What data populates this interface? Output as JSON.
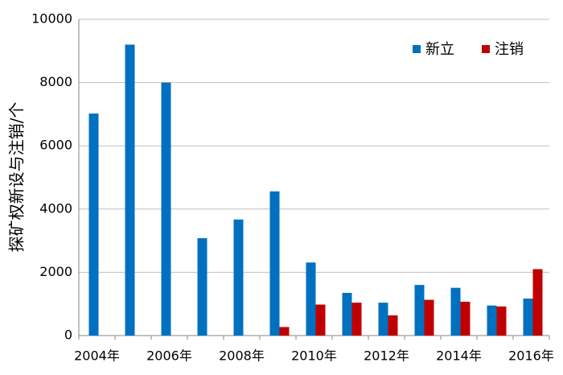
{
  "chart_data": {
    "type": "bar",
    "y_label": "探矿权新设与注销/个",
    "categories": [
      "2004年",
      null,
      "2006年",
      null,
      "2008年",
      null,
      "2010年",
      null,
      "2012年",
      null,
      "2014年",
      null,
      "2016年"
    ],
    "series": [
      {
        "name": "新立",
        "color": "#0070c0",
        "values": [
          7020,
          9200,
          8000,
          3080,
          3670,
          4560,
          2310,
          1350,
          1040,
          1600,
          1510,
          950,
          1170
        ]
      },
      {
        "name": "注销",
        "color": "#c00000",
        "values": [
          null,
          null,
          null,
          null,
          null,
          270,
          980,
          1040,
          640,
          1130,
          1070,
          920,
          2100
        ]
      }
    ],
    "ylim": [
      0,
      10000
    ],
    "yticks": [
      0,
      2000,
      4000,
      6000,
      8000,
      10000
    ],
    "grid": true,
    "legend": "top-right"
  }
}
